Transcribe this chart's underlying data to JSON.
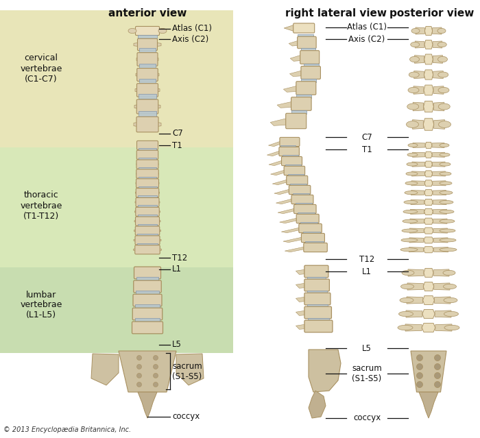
{
  "background_color": "#ffffff",
  "region_cervical_color": "#e8e5b8",
  "region_thoracic_color": "#d8e8b8",
  "region_lumbar_color": "#c8ddb0",
  "spine_color": "#ddd0b0",
  "spine_light": "#ece0c0",
  "spine_dark": "#c0a878",
  "spine_edge_color": "#a89060",
  "disc_color": "#b8c8d0",
  "disc_edge": "#8898a8",
  "text_color": "#111111",
  "line_color": "#111111",
  "copyright": "© 2013 Encyclopædia Britannica, Inc.",
  "anterior_view_title": "anterior view",
  "right_lateral_view_title": "right lateral view",
  "posterior_view_title": "posterior view",
  "cervical_label": "cervical\nvertebrae\n(C1-C7)",
  "thoracic_label": "thoracic\nvertebrae\n(T1-T12)",
  "lumbar_label": "lumbar\nvertebrae\n(L1-L5)",
  "fig_w": 7.0,
  "fig_h": 6.39,
  "dpi": 100
}
